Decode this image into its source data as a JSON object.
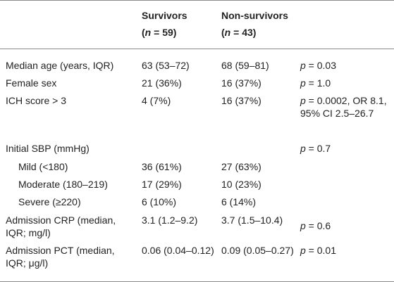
{
  "header": {
    "col1_title": "Survivors",
    "col1_n": "(n = 59)",
    "col2_title": "Non-survivors",
    "col2_n": "(n = 43)"
  },
  "rows": [
    {
      "label": "Median age (years, IQR)",
      "survivors": "63 (53–72)",
      "non_survivors": "68 (59–81)",
      "stat": "p = 0.03"
    },
    {
      "label": "Female sex",
      "survivors": "21 (36%)",
      "non_survivors": "16 (37%)",
      "stat": "p = 1.0"
    },
    {
      "label": "ICH score > 3",
      "survivors": "4 (7%)",
      "non_survivors": "16 (37%)",
      "stat": "p = 0.0002, OR 8.1, 95% CI 2.5–26.7"
    },
    {
      "label": "Initial SBP (mmHg)",
      "survivors": "",
      "non_survivors": "",
      "stat": "p = 0.7"
    },
    {
      "label": "Mild (<180)",
      "survivors": "36 (61%)",
      "non_survivors": "27 (63%)",
      "stat": ""
    },
    {
      "label": "Moderate (180–219)",
      "survivors": "17 (29%)",
      "non_survivors": "10 (23%)",
      "stat": ""
    },
    {
      "label": "Severe (≥220)",
      "survivors": "6 (10%)",
      "non_survivors": "6 (14%)",
      "stat": ""
    },
    {
      "label": "Admission CRP (median, IQR; mg/l)",
      "survivors": "3.1 (1.2–9.2)",
      "non_survivors": "3.7 (1.5–10.4)",
      "stat": "p = 0.6"
    },
    {
      "label": "Admission PCT (median, IQR; μg/l)",
      "survivors": "0.06 (0.04–0.12)",
      "non_survivors": "0.09 (0.05–0.27)",
      "stat": "p = 0.01"
    }
  ]
}
